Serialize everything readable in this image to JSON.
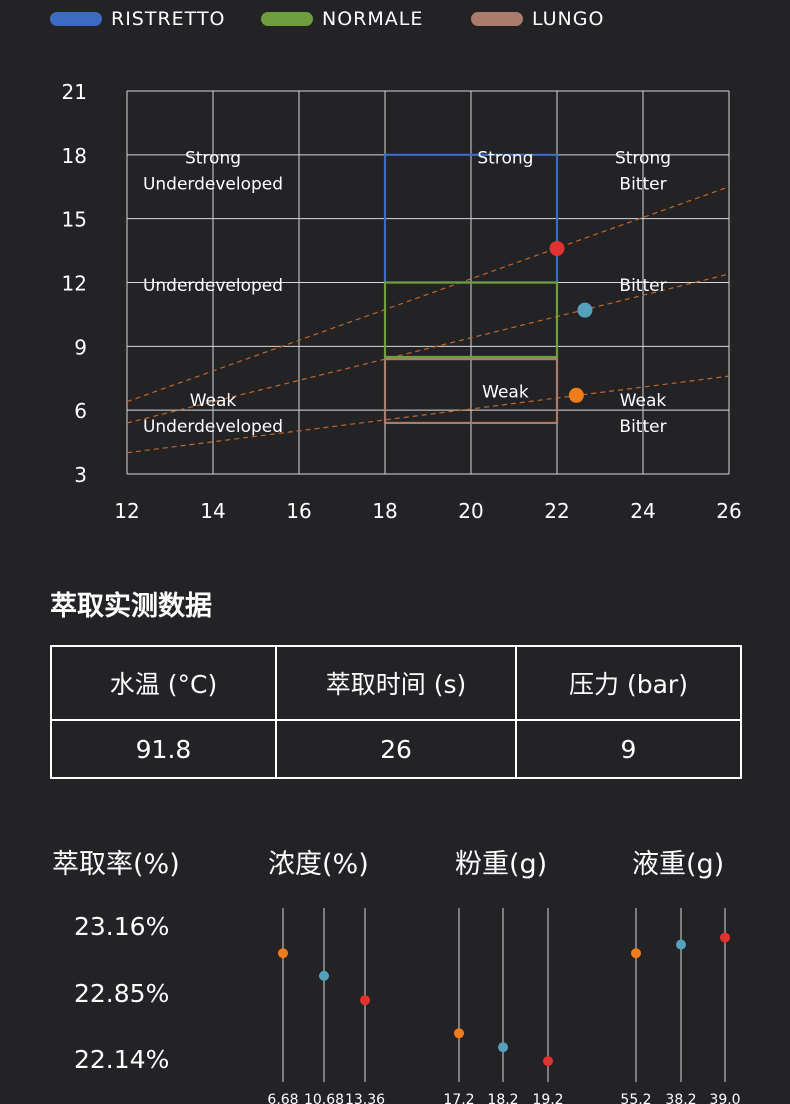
{
  "legend": [
    {
      "name": "RISTRETTO",
      "color": "#3d6bc2"
    },
    {
      "name": "NORMALE",
      "color": "#6f9e3c"
    },
    {
      "name": "LUNGO",
      "color": "#a97c6b"
    }
  ],
  "chart_data": {
    "type": "scatter",
    "x_ticks": [
      "12",
      "14",
      "16",
      "18",
      "20",
      "22",
      "24",
      "26"
    ],
    "y_ticks": [
      "3",
      "6",
      "9",
      "12",
      "15",
      "18",
      "21"
    ],
    "xlim": [
      12,
      26
    ],
    "ylim": [
      3,
      21
    ],
    "grid": true,
    "zone_labels": [
      {
        "lines": [
          "Strong",
          "Underdeveloped"
        ],
        "x": 14,
        "y": 17.6
      },
      {
        "lines": [
          "Strong"
        ],
        "x": 20.8,
        "y": 17.6
      },
      {
        "lines": [
          "Strong",
          "Bitter"
        ],
        "x": 24,
        "y": 17.6
      },
      {
        "lines": [
          "Underdeveloped"
        ],
        "x": 14,
        "y": 11.6
      },
      {
        "lines": [
          "Bitter"
        ],
        "x": 24,
        "y": 11.6
      },
      {
        "lines": [
          "Weak",
          "Underdeveloped"
        ],
        "x": 14,
        "y": 6.2
      },
      {
        "lines": [
          "Weak"
        ],
        "x": 20.8,
        "y": 6.6
      },
      {
        "lines": [
          "Weak",
          "Bitter"
        ],
        "x": 24,
        "y": 6.2
      }
    ],
    "boxes": [
      {
        "legend": "RISTRETTO",
        "x0": 18,
        "x1": 22,
        "y0": 12,
        "y1": 18,
        "color": "#3d6bc2"
      },
      {
        "legend": "NORMALE",
        "x0": 18,
        "x1": 22,
        "y0": 8.5,
        "y1": 12,
        "color": "#6f9e3c"
      },
      {
        "legend": "LUNGO",
        "x0": 18,
        "x1": 22,
        "y0": 5.4,
        "y1": 8.4,
        "color": "#a97c6b"
      }
    ],
    "trend_lines": [
      {
        "x0": 12,
        "y0": 6.4,
        "x1": 26,
        "y1": 16.5,
        "color": "#c0672b"
      },
      {
        "x0": 12,
        "y0": 5.4,
        "x1": 26,
        "y1": 12.4,
        "color": "#c0672b"
      },
      {
        "x0": 12,
        "y0": 4.0,
        "x1": 26,
        "y1": 7.6,
        "color": "#c0672b"
      }
    ],
    "points": [
      {
        "x": 22.0,
        "y": 13.6,
        "color": "#e0322f"
      },
      {
        "x": 22.65,
        "y": 10.7,
        "color": "#55a1bd"
      },
      {
        "x": 22.45,
        "y": 6.7,
        "color": "#f07c1d"
      }
    ]
  },
  "section": {
    "title": "萃取实测数据"
  },
  "table": {
    "headers": [
      "水温 (°C)",
      "萃取时间 (s)",
      "压力 (bar)"
    ],
    "values": [
      "91.8",
      "26",
      "9"
    ]
  },
  "metrics": {
    "extraction_header": "萃取率(%)",
    "concentration_header": "浓度(%)",
    "dose_header": "粉重(g)",
    "liquid_header": "液重(g)",
    "extraction_values": [
      "23.16%",
      "22.85%",
      "22.14%"
    ]
  },
  "dot_plots": [
    {
      "name": "concentration",
      "ticks": [
        "6.68",
        "10.68",
        "13.36"
      ],
      "dots": [
        {
          "level": 0.74,
          "color": "#f07c1d"
        },
        {
          "level": 0.61,
          "color": "#55a1bd"
        },
        {
          "level": 0.47,
          "color": "#e0322f"
        }
      ]
    },
    {
      "name": "dose",
      "ticks": [
        "17.2",
        "18.2",
        "19.2"
      ],
      "dots": [
        {
          "level": 0.28,
          "color": "#f07c1d"
        },
        {
          "level": 0.2,
          "color": "#55a1bd"
        },
        {
          "level": 0.12,
          "color": "#e0322f"
        }
      ]
    },
    {
      "name": "liquid",
      "ticks": [
        "55.2",
        "38.2",
        "39.0"
      ],
      "dots": [
        {
          "level": 0.74,
          "color": "#f07c1d"
        },
        {
          "level": 0.79,
          "color": "#55a1bd"
        },
        {
          "level": 0.83,
          "color": "#e0322f"
        }
      ]
    }
  ]
}
